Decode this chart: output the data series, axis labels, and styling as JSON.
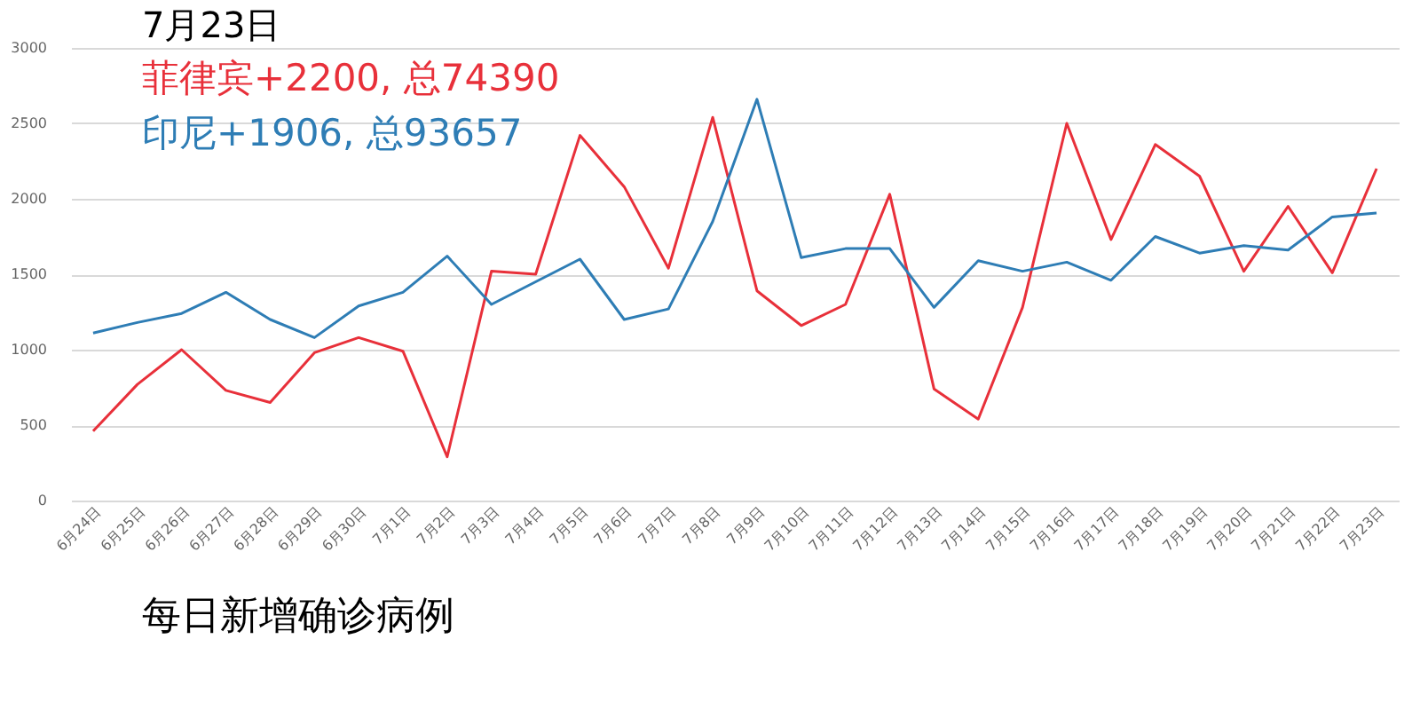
{
  "chart_data": {
    "type": "line",
    "title": "7月23日",
    "categories": [
      "6月24日",
      "6月25日",
      "6月26日",
      "6月27日",
      "6月28日",
      "6月29日",
      "6月30日",
      "7月1日",
      "7月2日",
      "7月3日",
      "7月4日",
      "7月5日",
      "7月6日",
      "7月7日",
      "7月8日",
      "7月9日",
      "7月10日",
      "7月11日",
      "7月12日",
      "7月13日",
      "7月14日",
      "7月15日",
      "7月16日",
      "7月17日",
      "7月18日",
      "7月19日",
      "7月20日",
      "7月21日",
      "7月22日",
      "7月23日"
    ],
    "series": [
      {
        "name": "菲律宾+2200, 总74390",
        "color": "#e8303a",
        "values": [
          460,
          770,
          1000,
          730,
          650,
          980,
          1080,
          990,
          290,
          1520,
          1500,
          2420,
          2080,
          1540,
          2540,
          1390,
          1160,
          1300,
          2030,
          740,
          540,
          1280,
          2500,
          1730,
          2360,
          2150,
          1520,
          1950,
          1510,
          2200
        ]
      },
      {
        "name": "印尼+1906, 总93657",
        "color": "#2e7db5",
        "values": [
          1110,
          1180,
          1240,
          1380,
          1200,
          1080,
          1290,
          1380,
          1620,
          1300,
          1450,
          1600,
          1200,
          1270,
          1850,
          2660,
          1610,
          1670,
          1670,
          1280,
          1590,
          1520,
          1580,
          1460,
          1750,
          1640,
          1690,
          1660,
          1880,
          1906
        ]
      }
    ],
    "ylim": [
      0,
      3000
    ],
    "yticks": [
      0,
      500,
      1000,
      1500,
      2000,
      2500,
      3000
    ],
    "grid": "y",
    "legend": "top left",
    "marker": "none",
    "line_style": "solid",
    "annotations": [
      "每日新增确诊病例"
    ]
  }
}
